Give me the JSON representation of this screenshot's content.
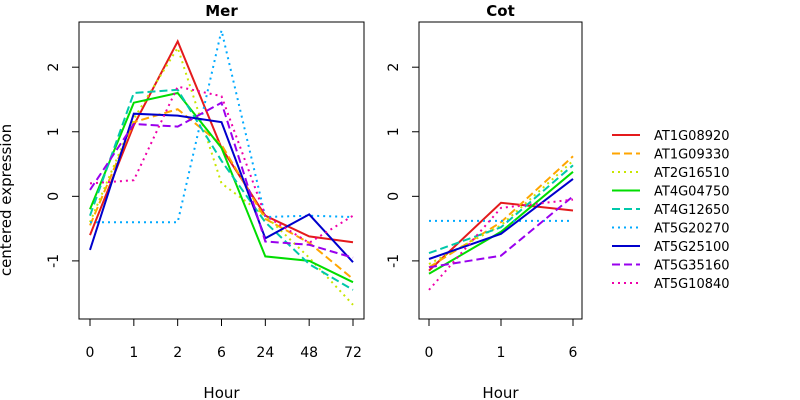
{
  "chart_data": {
    "type": "line",
    "ylabel": "centered expression",
    "legend_position": "right",
    "grid": false,
    "panels": [
      {
        "title": "Mer",
        "xlabel": "Hour",
        "categories": [
          "0",
          "1",
          "2",
          "6",
          "24",
          "48",
          "72"
        ],
        "yticks": [
          "-1",
          "0",
          "1",
          "2"
        ],
        "ylim": [
          -1.9,
          2.7
        ],
        "series": [
          {
            "name": "AT1G08920",
            "color": "#e41a1c",
            "dash": "solid",
            "values": [
              -0.6,
              1.1,
              2.4,
              0.75,
              -0.3,
              -0.62,
              -0.71
            ]
          },
          {
            "name": "AT1G09330",
            "color": "#ffa500",
            "dash": "dashed",
            "values": [
              -0.45,
              1.15,
              1.35,
              0.8,
              -0.35,
              -0.72,
              -1.28
            ]
          },
          {
            "name": "AT2G16510",
            "color": "#c8e600",
            "dash": "dotted",
            "values": [
              -0.4,
              1.2,
              2.3,
              0.2,
              -0.3,
              -0.95,
              -1.68
            ]
          },
          {
            "name": "AT4G04750",
            "color": "#00dd00",
            "dash": "solid",
            "values": [
              -0.2,
              1.45,
              1.6,
              0.75,
              -0.93,
              -1.0,
              -1.33
            ]
          },
          {
            "name": "AT4G12650",
            "color": "#00c8aa",
            "dash": "dashed",
            "values": [
              -0.3,
              1.6,
              1.65,
              0.55,
              -0.4,
              -1.05,
              -1.45
            ]
          },
          {
            "name": "AT5G20270",
            "color": "#00aaff",
            "dash": "dotted",
            "values": [
              -0.4,
              -0.4,
              -0.4,
              2.57,
              -0.32,
              -0.3,
              -0.32
            ]
          },
          {
            "name": "AT5G25100",
            "color": "#0000cc",
            "dash": "solid",
            "values": [
              -0.83,
              1.28,
              1.25,
              1.15,
              -0.65,
              -0.28,
              -1.02
            ]
          },
          {
            "name": "AT5G35160",
            "color": "#9900ee",
            "dash": "dashed",
            "values": [
              0.1,
              1.12,
              1.08,
              1.45,
              -0.7,
              -0.75,
              -0.95
            ]
          },
          {
            "name": "AT5G10840",
            "color": "#ee00aa",
            "dash": "dotted",
            "values": [
              0.2,
              0.25,
              1.7,
              1.55,
              -0.3,
              -0.72,
              -0.3
            ]
          }
        ]
      },
      {
        "title": "Cot",
        "xlabel": "Hour",
        "categories": [
          "0",
          "1",
          "6"
        ],
        "yticks": [
          "-1",
          "0",
          "1",
          "2"
        ],
        "ylim": [
          -1.9,
          2.7
        ],
        "series": [
          {
            "name": "AT1G08920",
            "color": "#e41a1c",
            "dash": "solid",
            "values": [
              -1.15,
              -0.1,
              -0.22
            ]
          },
          {
            "name": "AT1G09330",
            "color": "#ffa500",
            "dash": "dashed",
            "values": [
              -1.1,
              -0.4,
              0.62
            ]
          },
          {
            "name": "AT2G16510",
            "color": "#c8e600",
            "dash": "dotted",
            "values": [
              -1.05,
              -0.45,
              0.55
            ]
          },
          {
            "name": "AT4G04750",
            "color": "#00dd00",
            "dash": "solid",
            "values": [
              -1.2,
              -0.55,
              0.38
            ]
          },
          {
            "name": "AT4G12650",
            "color": "#00c8aa",
            "dash": "dashed",
            "values": [
              -0.88,
              -0.48,
              0.48
            ]
          },
          {
            "name": "AT5G20270",
            "color": "#00aaff",
            "dash": "dotted",
            "values": [
              -0.38,
              -0.38,
              -0.38
            ]
          },
          {
            "name": "AT5G25100",
            "color": "#0000cc",
            "dash": "solid",
            "values": [
              -0.97,
              -0.58,
              0.27
            ]
          },
          {
            "name": "AT5G35160",
            "color": "#9900ee",
            "dash": "dashed",
            "values": [
              -1.1,
              -0.92,
              0.0
            ]
          },
          {
            "name": "AT5G10840",
            "color": "#ee00aa",
            "dash": "dotted",
            "values": [
              -1.45,
              -0.18,
              -0.05
            ]
          }
        ]
      }
    ]
  }
}
